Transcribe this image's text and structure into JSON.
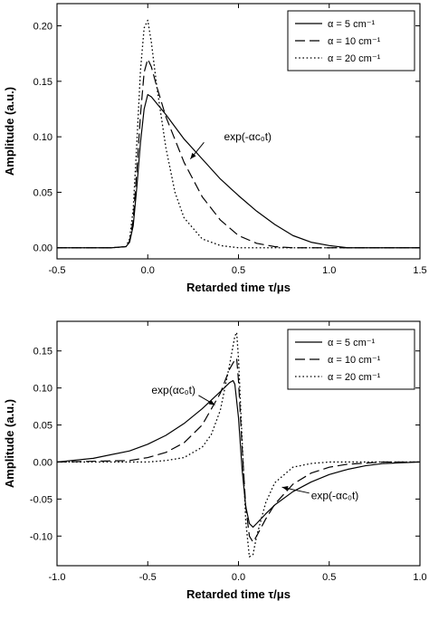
{
  "chart_data": [
    {
      "type": "line",
      "xlabel": "Retarded time τ/μs",
      "ylabel": "Amplitude (a.u.)",
      "xlim": [
        -0.5,
        1.5
      ],
      "ylim": [
        -0.01,
        0.22
      ],
      "xticks": [
        -0.5,
        0.0,
        0.5,
        1.0,
        1.5
      ],
      "xtick_labels": [
        "-0.5",
        "0.0",
        "0.5",
        "1.0",
        "1.5"
      ],
      "yticks": [
        0.0,
        0.05,
        0.1,
        0.15,
        0.2
      ],
      "ytick_labels": [
        "0.00",
        "0.05",
        "0.10",
        "0.15",
        "0.20"
      ],
      "legend_position": "top-right",
      "legend": [
        "α = 5 cm⁻¹",
        "α = 10 cm⁻¹",
        "α = 20 cm⁻¹"
      ],
      "annotations": [
        {
          "text": "exp(-αc₀t)",
          "x": 0.42,
          "y": 0.1
        }
      ],
      "series": [
        {
          "name": "α = 5 cm⁻¹",
          "style": "solid",
          "x": [
            -0.5,
            -0.2,
            -0.12,
            -0.1,
            -0.08,
            -0.06,
            -0.04,
            -0.02,
            0.0,
            0.02,
            0.05,
            0.1,
            0.2,
            0.3,
            0.4,
            0.5,
            0.6,
            0.7,
            0.8,
            0.9,
            1.0,
            1.1,
            1.5
          ],
          "y": [
            0,
            0,
            0.001,
            0.005,
            0.02,
            0.055,
            0.095,
            0.125,
            0.138,
            0.136,
            0.13,
            0.12,
            0.098,
            0.08,
            0.062,
            0.047,
            0.033,
            0.021,
            0.011,
            0.005,
            0.002,
            0,
            0
          ]
        },
        {
          "name": "α = 10 cm⁻¹",
          "style": "dashed",
          "x": [
            -0.5,
            -0.2,
            -0.12,
            -0.1,
            -0.08,
            -0.06,
            -0.04,
            -0.02,
            0.0,
            0.02,
            0.05,
            0.1,
            0.2,
            0.3,
            0.4,
            0.5,
            0.6,
            0.7,
            0.8,
            1.5
          ],
          "y": [
            0,
            0,
            0.001,
            0.006,
            0.025,
            0.07,
            0.12,
            0.158,
            0.17,
            0.163,
            0.145,
            0.118,
            0.077,
            0.046,
            0.025,
            0.011,
            0.004,
            0.001,
            0,
            0
          ]
        },
        {
          "name": "α = 20 cm⁻¹",
          "style": "dotted",
          "x": [
            -0.5,
            -0.2,
            -0.12,
            -0.1,
            -0.08,
            -0.06,
            -0.04,
            -0.02,
            0.0,
            0.02,
            0.05,
            0.1,
            0.15,
            0.2,
            0.3,
            0.4,
            0.5,
            1.5
          ],
          "y": [
            0,
            0,
            0.001,
            0.008,
            0.035,
            0.095,
            0.16,
            0.198,
            0.205,
            0.185,
            0.145,
            0.09,
            0.05,
            0.027,
            0.008,
            0.002,
            0,
            0
          ]
        }
      ]
    },
    {
      "type": "line",
      "xlabel": "Retarded time τ/μs",
      "ylabel": "Amplitude (a.u.)",
      "xlim": [
        -1.0,
        1.0
      ],
      "ylim": [
        -0.14,
        0.19
      ],
      "xticks": [
        -1.0,
        -0.5,
        0.0,
        0.5,
        1.0
      ],
      "xtick_labels": [
        "-1.0",
        "-0.5",
        "0.0",
        "0.5",
        "1.0"
      ],
      "yticks": [
        -0.1,
        -0.05,
        0.0,
        0.05,
        0.1,
        0.15
      ],
      "ytick_labels": [
        "-0.10",
        "-0.05",
        "0.00",
        "0.05",
        "0.10",
        "0.15"
      ],
      "legend_position": "top-right",
      "legend": [
        "α = 5 cm⁻¹",
        "α = 10 cm⁻¹",
        "α = 20 cm⁻¹"
      ],
      "annotations": [
        {
          "text": "exp(αc₀t)",
          "x": -0.22,
          "y": 0.097
        },
        {
          "text": "exp(-αc₀t)",
          "x": 0.4,
          "y": -0.045
        }
      ],
      "series": [
        {
          "name": "α = 5 cm⁻¹",
          "style": "solid",
          "x": [
            -1.0,
            -0.8,
            -0.6,
            -0.5,
            -0.4,
            -0.3,
            -0.2,
            -0.1,
            -0.05,
            -0.03,
            -0.02,
            0.0,
            0.02,
            0.04,
            0.06,
            0.08,
            0.1,
            0.15,
            0.2,
            0.3,
            0.4,
            0.5,
            0.6,
            0.7,
            0.8,
            0.9,
            1.0
          ],
          "y": [
            0.0,
            0.005,
            0.015,
            0.024,
            0.036,
            0.052,
            0.072,
            0.095,
            0.107,
            0.11,
            0.105,
            0.06,
            -0.01,
            -0.06,
            -0.083,
            -0.088,
            -0.083,
            -0.07,
            -0.058,
            -0.04,
            -0.027,
            -0.017,
            -0.01,
            -0.005,
            -0.002,
            -0.001,
            0.0
          ]
        },
        {
          "name": "α = 10 cm⁻¹",
          "style": "dashed",
          "x": [
            -1.0,
            -0.6,
            -0.5,
            -0.4,
            -0.3,
            -0.2,
            -0.1,
            -0.05,
            -0.02,
            -0.01,
            0.0,
            0.02,
            0.04,
            0.06,
            0.08,
            0.1,
            0.15,
            0.2,
            0.3,
            0.4,
            0.5,
            0.6,
            0.8,
            1.0
          ],
          "y": [
            0.0,
            0.002,
            0.006,
            0.013,
            0.026,
            0.05,
            0.093,
            0.125,
            0.138,
            0.14,
            0.11,
            0.02,
            -0.06,
            -0.1,
            -0.108,
            -0.1,
            -0.077,
            -0.057,
            -0.03,
            -0.015,
            -0.007,
            -0.003,
            0.0,
            0.0
          ]
        },
        {
          "name": "α = 20 cm⁻¹",
          "style": "dotted",
          "x": [
            -1.0,
            -0.5,
            -0.4,
            -0.3,
            -0.2,
            -0.15,
            -0.1,
            -0.05,
            -0.02,
            -0.01,
            0.0,
            0.02,
            0.04,
            0.06,
            0.08,
            0.1,
            0.15,
            0.2,
            0.3,
            0.4,
            0.5,
            1.0
          ],
          "y": [
            0.0,
            0.0,
            0.002,
            0.006,
            0.02,
            0.037,
            0.07,
            0.13,
            0.17,
            0.175,
            0.14,
            0.03,
            -0.08,
            -0.128,
            -0.125,
            -0.1,
            -0.055,
            -0.028,
            -0.007,
            -0.002,
            0.0,
            0.0
          ]
        }
      ]
    }
  ]
}
